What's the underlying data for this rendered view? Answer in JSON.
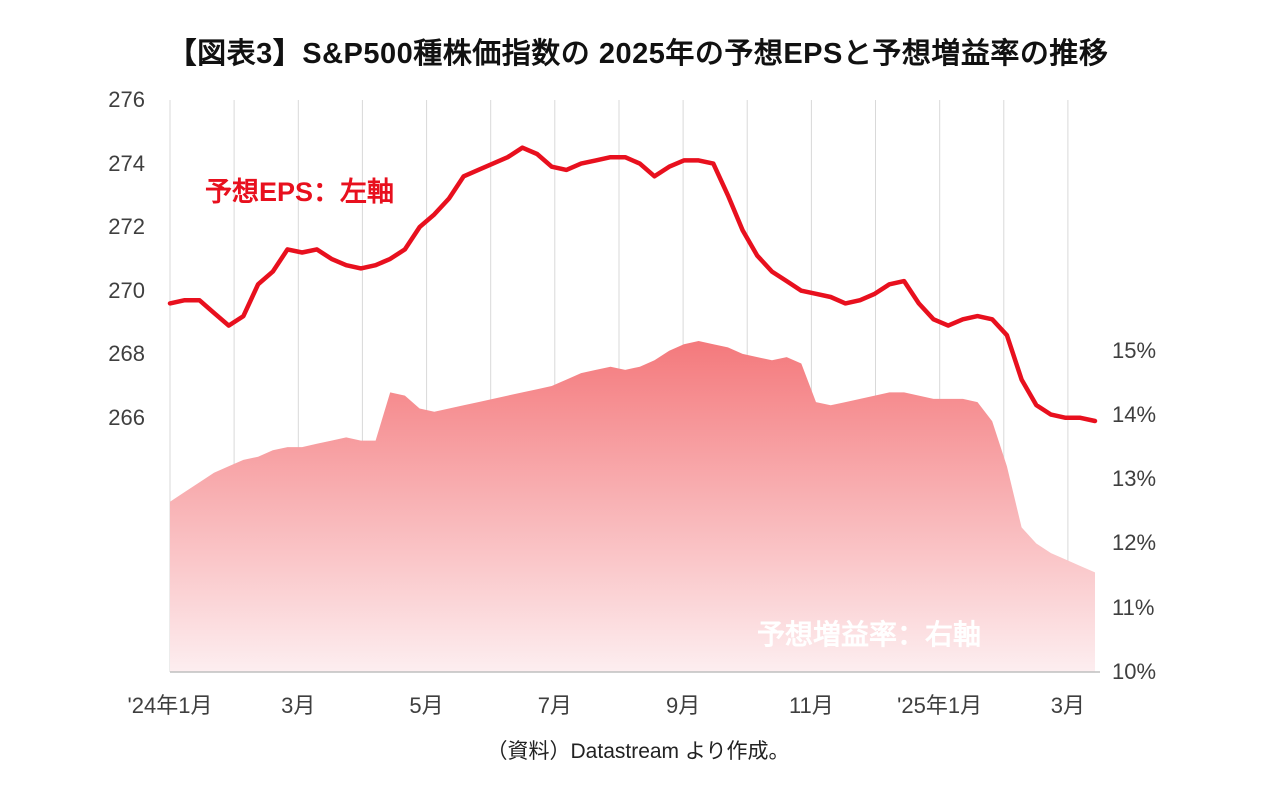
{
  "page": {
    "title": "【図表3】S&P500種株価指数の 2025年の予想EPSと予想増益率の推移",
    "source": "（資料）Datastream より作成。"
  },
  "chart_data": {
    "type": "line",
    "title": "【図表3】S&P500種株価指数の 2025年の予想EPSと予想増益率の推移",
    "left_axis": {
      "label": "予想EPS：左軸",
      "tick_values": [
        276,
        274,
        272,
        270,
        268,
        266
      ],
      "range": [
        258,
        276
      ]
    },
    "right_axis": {
      "label": "予想増益率：右軸",
      "tick_values": [
        15,
        14,
        13,
        12,
        11,
        10
      ],
      "tick_labels": [
        "15%",
        "14%",
        "13%",
        "12%",
        "11%",
        "10%"
      ],
      "range": [
        10,
        18.9
      ]
    },
    "x_axis": {
      "tick_labels": [
        "'24年1月",
        "3月",
        "5月",
        "7月",
        "9月",
        "11月",
        "'25年1月",
        "3月"
      ],
      "tick_month_positions": [
        0,
        2,
        4,
        6,
        8,
        10,
        12,
        14
      ],
      "total_months": 14.5,
      "gridlines": "monthly-vertical"
    },
    "series": [
      {
        "name": "予想EPS",
        "axis": "left",
        "type": "line",
        "color": "#e8101e",
        "values": [
          269.6,
          269.7,
          269.7,
          269.3,
          268.9,
          269.2,
          270.2,
          270.6,
          271.3,
          271.2,
          271.3,
          271.0,
          270.8,
          270.7,
          270.8,
          271.0,
          271.3,
          272.0,
          272.4,
          272.9,
          273.6,
          273.8,
          274.0,
          274.2,
          274.5,
          274.3,
          273.9,
          273.8,
          274.0,
          274.1,
          274.2,
          274.2,
          274.0,
          273.6,
          273.9,
          274.1,
          274.1,
          274.0,
          273.0,
          271.9,
          271.1,
          270.6,
          270.3,
          270.0,
          269.9,
          269.8,
          269.6,
          269.7,
          269.9,
          270.2,
          270.3,
          269.6,
          269.1,
          268.9,
          269.1,
          269.2,
          269.1,
          268.6,
          267.2,
          266.4,
          266.1,
          266.0,
          266.0,
          265.9
        ]
      },
      {
        "name": "予想増益率",
        "axis": "right",
        "type": "area",
        "gradient_top": "#f4797c",
        "gradient_bottom": "#fdeef0",
        "values": [
          12.65,
          12.8,
          12.95,
          13.1,
          13.2,
          13.3,
          13.35,
          13.45,
          13.5,
          13.5,
          13.55,
          13.6,
          13.65,
          13.6,
          13.6,
          14.35,
          14.3,
          14.1,
          14.05,
          14.1,
          14.15,
          14.2,
          14.25,
          14.3,
          14.35,
          14.4,
          14.45,
          14.55,
          14.65,
          14.7,
          14.75,
          14.7,
          14.75,
          14.85,
          15.0,
          15.1,
          15.15,
          15.1,
          15.05,
          14.95,
          14.9,
          14.85,
          14.9,
          14.8,
          14.2,
          14.15,
          14.2,
          14.25,
          14.3,
          14.35,
          14.35,
          14.3,
          14.25,
          14.25,
          14.25,
          14.2,
          13.9,
          13.2,
          12.25,
          12.0,
          11.85,
          11.75,
          11.65,
          11.55
        ]
      }
    ]
  }
}
